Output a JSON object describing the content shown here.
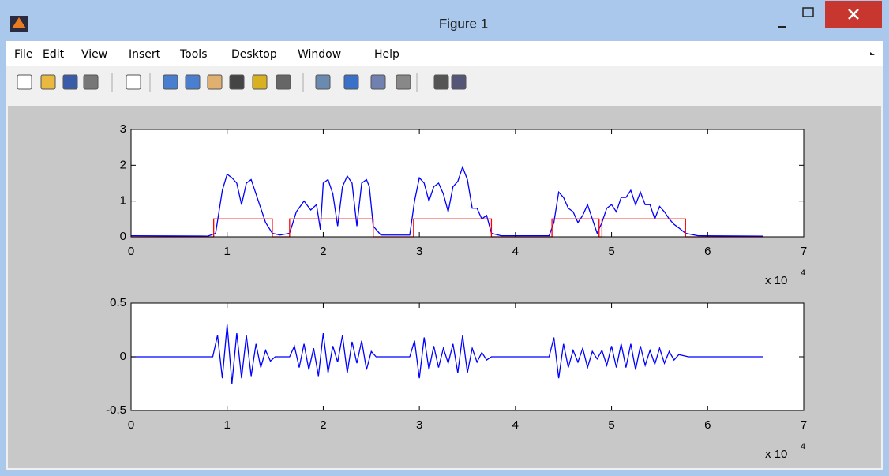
{
  "window": {
    "title": "Figure 1"
  },
  "menu": [
    "File",
    "Edit",
    "View",
    "Insert",
    "Tools",
    "Desktop",
    "Window",
    "Help"
  ],
  "chart_data": [
    {
      "type": "line",
      "xlim": [
        0,
        7
      ],
      "xticks": [
        0,
        1,
        2,
        3,
        4,
        5,
        6,
        7
      ],
      "ylim": [
        0,
        3
      ],
      "yticks": [
        0,
        1,
        2,
        3
      ],
      "x_multiplier": "x 10",
      "x_exponent": "4",
      "series": [
        {
          "color": "#0000ff",
          "x": [
            0,
            0.8,
            0.88,
            0.95,
            1.0,
            1.05,
            1.1,
            1.15,
            1.2,
            1.25,
            1.3,
            1.35,
            1.4,
            1.47,
            1.55,
            1.65,
            1.72,
            1.8,
            1.87,
            1.93,
            1.97,
            2.0,
            2.05,
            2.1,
            2.15,
            2.2,
            2.25,
            2.3,
            2.35,
            2.4,
            2.45,
            2.48,
            2.52,
            2.6,
            2.9,
            2.95,
            3.0,
            3.05,
            3.1,
            3.15,
            3.2,
            3.25,
            3.3,
            3.35,
            3.4,
            3.45,
            3.5,
            3.55,
            3.6,
            3.65,
            3.7,
            3.75,
            3.85,
            4.35,
            4.4,
            4.45,
            4.5,
            4.55,
            4.6,
            4.65,
            4.7,
            4.75,
            4.8,
            4.85,
            4.9,
            4.95,
            5.0,
            5.05,
            5.1,
            5.15,
            5.2,
            5.25,
            5.3,
            5.35,
            5.4,
            5.45,
            5.5,
            5.55,
            5.6,
            5.65,
            5.7,
            5.77,
            5.9,
            6.58
          ],
          "values": [
            0.03,
            0.02,
            0.1,
            1.3,
            1.75,
            1.65,
            1.5,
            0.9,
            1.5,
            1.6,
            1.2,
            0.8,
            0.4,
            0.1,
            0.05,
            0.1,
            0.7,
            1.0,
            0.75,
            0.9,
            0.2,
            1.5,
            1.6,
            1.2,
            0.3,
            1.4,
            1.7,
            1.5,
            0.3,
            1.5,
            1.6,
            1.4,
            0.3,
            0.05,
            0.05,
            1.0,
            1.65,
            1.5,
            1.0,
            1.4,
            1.5,
            1.2,
            0.7,
            1.4,
            1.55,
            1.95,
            1.6,
            0.8,
            0.8,
            0.5,
            0.6,
            0.1,
            0.03,
            0.03,
            0.4,
            1.25,
            1.1,
            0.8,
            0.7,
            0.4,
            0.6,
            0.9,
            0.5,
            0.1,
            0.4,
            0.8,
            0.9,
            0.7,
            1.1,
            1.1,
            1.3,
            0.9,
            1.25,
            0.9,
            0.9,
            0.5,
            0.85,
            0.7,
            0.5,
            0.35,
            0.25,
            0.1,
            0.03,
            0.02
          ]
        },
        {
          "color": "#ff0000",
          "x": [
            0,
            0.86,
            0.86,
            1.47,
            1.47,
            1.65,
            1.65,
            2.52,
            2.52,
            2.94,
            2.94,
            3.75,
            3.75,
            4.38,
            4.38,
            4.87,
            4.87,
            4.9,
            4.9,
            5.77,
            5.77,
            6.58
          ],
          "values": [
            0,
            0,
            0.5,
            0.5,
            0,
            0,
            0.5,
            0.5,
            0,
            0,
            0.5,
            0.5,
            0,
            0,
            0.5,
            0.5,
            0,
            0,
            0.5,
            0.5,
            0,
            0
          ]
        }
      ]
    },
    {
      "type": "line",
      "xlim": [
        0,
        7
      ],
      "xticks": [
        0,
        1,
        2,
        3,
        4,
        5,
        6,
        7
      ],
      "ylim": [
        -0.5,
        0.5
      ],
      "yticks": [
        -0.5,
        0,
        0.5
      ],
      "x_multiplier": "x 10",
      "x_exponent": "4",
      "series": [
        {
          "color": "#0000ff",
          "x": [
            0,
            0.85,
            0.9,
            0.95,
            1.0,
            1.05,
            1.1,
            1.15,
            1.2,
            1.25,
            1.3,
            1.35,
            1.4,
            1.45,
            1.5,
            1.65,
            1.7,
            1.75,
            1.8,
            1.85,
            1.9,
            1.95,
            2.0,
            2.05,
            2.1,
            2.15,
            2.2,
            2.25,
            2.3,
            2.35,
            2.4,
            2.45,
            2.5,
            2.55,
            2.9,
            2.95,
            3.0,
            3.05,
            3.1,
            3.15,
            3.2,
            3.25,
            3.3,
            3.35,
            3.4,
            3.45,
            3.5,
            3.55,
            3.6,
            3.65,
            3.7,
            3.75,
            4.35,
            4.4,
            4.45,
            4.5,
            4.55,
            4.6,
            4.65,
            4.7,
            4.75,
            4.8,
            4.85,
            4.9,
            4.95,
            5.0,
            5.05,
            5.1,
            5.15,
            5.2,
            5.25,
            5.3,
            5.35,
            5.4,
            5.45,
            5.5,
            5.55,
            5.6,
            5.65,
            5.7,
            5.8,
            6.58
          ],
          "values": [
            0,
            0,
            0.2,
            -0.2,
            0.3,
            -0.25,
            0.22,
            -0.2,
            0.2,
            -0.18,
            0.12,
            -0.1,
            0.06,
            -0.04,
            0,
            0,
            0.1,
            -0.1,
            0.12,
            -0.12,
            0.08,
            -0.18,
            0.22,
            -0.15,
            0.1,
            -0.05,
            0.2,
            -0.15,
            0.14,
            -0.06,
            0.15,
            -0.12,
            0.05,
            0,
            0,
            0.15,
            -0.2,
            0.18,
            -0.12,
            0.1,
            -0.1,
            0.08,
            -0.06,
            0.12,
            -0.15,
            0.2,
            -0.15,
            0.08,
            -0.05,
            0.04,
            -0.03,
            0,
            0,
            0.18,
            -0.2,
            0.12,
            -0.1,
            0.06,
            -0.05,
            0.08,
            -0.1,
            0.05,
            -0.02,
            0.06,
            -0.08,
            0.1,
            -0.1,
            0.12,
            -0.1,
            0.12,
            -0.12,
            0.1,
            -0.08,
            0.06,
            -0.07,
            0.08,
            -0.06,
            0.05,
            -0.03,
            0.02,
            0,
            0
          ]
        }
      ]
    }
  ]
}
